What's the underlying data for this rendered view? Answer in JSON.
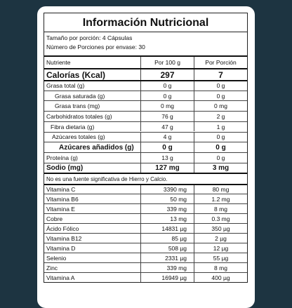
{
  "title": "Información Nutricional",
  "serving": {
    "size": "Tamaño por porción: 4 Cápsulas",
    "servings": "Número de Porciones por envase: 30"
  },
  "header": [
    "Nutriente",
    "Por 100 g",
    "Por Porción"
  ],
  "rows": [
    [
      "Calorías (Kcal)",
      "297",
      "7"
    ],
    [
      "Grasa total (g)",
      "0 g",
      "0 g"
    ],
    [
      "Grasa saturada (g)",
      "0 g",
      "0 g"
    ],
    [
      "Grasa trans (mg)",
      "0 mg",
      "0 mg"
    ],
    [
      "Carbohidratos totales (g)",
      "76 g",
      "2 g"
    ],
    [
      "Fibra dietaria (g)",
      "47 g",
      "1 g"
    ],
    [
      "Azúcares totales (g)",
      "4 g",
      "0 g"
    ],
    [
      "Azúcares añadidos (g)",
      "0 g",
      "0 g"
    ],
    [
      "Proteína (g)",
      "13 g",
      "0 g"
    ],
    [
      "Sodio (mg)",
      "127 mg",
      "3 mg"
    ]
  ],
  "note": "No es una fuente significativa de Hierro y Calcio.",
  "vitamins": [
    [
      "Vitamina C",
      "3390 mg",
      "80 mg"
    ],
    [
      "Vitamina B6",
      "50 mg",
      "1.2 mg"
    ],
    [
      "Vitamina E",
      "339 mg",
      "8 mg"
    ],
    [
      "Cobre",
      "13 mg",
      "0.3 mg"
    ],
    [
      "Ácido Fólico",
      "14831 µg",
      "350 µg"
    ],
    [
      "Vitamina B12",
      "85 µg",
      "2 µg"
    ],
    [
      "Vitamina D",
      "508 µg",
      "12 µg"
    ],
    [
      "Selenio",
      "2331 µg",
      "55 µg"
    ],
    [
      "Zinc",
      "339 mg",
      "8 mg"
    ],
    [
      "Vitamina A",
      "16949 µg",
      "400 µg"
    ]
  ]
}
